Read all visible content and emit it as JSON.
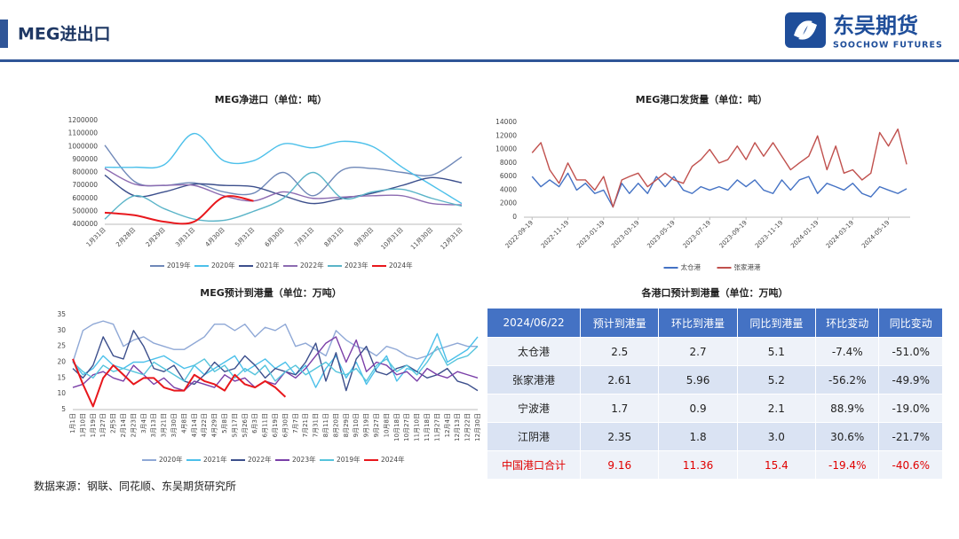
{
  "header": {
    "title": "MEG进出口",
    "logo_cn": "东吴期货",
    "logo_en": "SOOCHOW FUTURES"
  },
  "chart_data": [
    {
      "type": "line",
      "title": "MEG净进口（单位：吨）",
      "smooth": true,
      "grid": false,
      "categories": [
        "1月31日",
        "2月28日",
        "2月29日",
        "3月31日",
        "4月30日",
        "5月31日",
        "6月30日",
        "7月31日",
        "8月31日",
        "9月30日",
        "10月31日",
        "11月30日",
        "12月31日"
      ],
      "ylim": [
        400000,
        1200000
      ],
      "yticks": [
        400000,
        500000,
        600000,
        700000,
        800000,
        900000,
        1000000,
        1100000,
        1200000
      ],
      "series": [
        {
          "name": "2019年",
          "color": "#6f88b8",
          "values": [
            1010000,
            730000,
            700000,
            720000,
            650000,
            640000,
            800000,
            620000,
            820000,
            830000,
            800000,
            780000,
            920000
          ]
        },
        {
          "name": "2020年",
          "color": "#4cc0ea",
          "values": [
            840000,
            840000,
            860000,
            1100000,
            890000,
            890000,
            1020000,
            990000,
            1040000,
            1000000,
            840000,
            700000,
            560000
          ]
        },
        {
          "name": "2021年",
          "color": "#3c4f8c",
          "values": [
            780000,
            620000,
            650000,
            710000,
            700000,
            690000,
            620000,
            560000,
            600000,
            640000,
            700000,
            760000,
            720000
          ]
        },
        {
          "name": "2022年",
          "color": "#8c6bb1",
          "values": [
            830000,
            710000,
            700000,
            700000,
            620000,
            580000,
            650000,
            600000,
            610000,
            620000,
            620000,
            560000,
            550000
          ]
        },
        {
          "name": "2023年",
          "color": "#5ab4c8",
          "values": [
            440000,
            620000,
            520000,
            440000,
            430000,
            500000,
            600000,
            800000,
            600000,
            650000,
            670000,
            600000,
            540000
          ]
        },
        {
          "name": "2024年",
          "color": "#e8171c",
          "values": [
            490000,
            470000,
            420000,
            420000,
            610000,
            580000,
            null,
            null,
            null,
            null,
            null,
            null,
            null
          ]
        }
      ]
    },
    {
      "type": "line",
      "title": "MEG港口发货量（单位：吨）",
      "smooth": false,
      "grid": false,
      "x": [
        "2022-09-19",
        "2022-10-04",
        "2022-10-19",
        "2022-11-04",
        "2022-11-19",
        "2022-12-04",
        "2022-12-19",
        "2023-01-04",
        "2023-01-19",
        "2023-02-04",
        "2023-02-19",
        "2023-03-04",
        "2023-03-19",
        "2023-04-04",
        "2023-04-19",
        "2023-05-04",
        "2023-05-19",
        "2023-06-04",
        "2023-06-19",
        "2023-07-04",
        "2023-07-19",
        "2023-08-04",
        "2023-08-19",
        "2023-09-04",
        "2023-09-19",
        "2023-10-04",
        "2023-10-19",
        "2023-11-04",
        "2023-11-19",
        "2023-12-04",
        "2023-12-19",
        "2024-01-04",
        "2024-01-19",
        "2024-02-04",
        "2024-02-19",
        "2024-03-04",
        "2024-03-19",
        "2024-04-04",
        "2024-04-19",
        "2024-05-04",
        "2024-05-19",
        "2024-06-04",
        "2024-06-19"
      ],
      "xlim": [
        "2022-09-05",
        "2024-06-25"
      ],
      "xticks": [
        "2022-09-19",
        "2022-11-19",
        "2023-01-19",
        "2023-03-19",
        "2023-05-19",
        "2023-07-19",
        "2023-09-19",
        "2023-11-19",
        "2024-01-19",
        "2024-03-19",
        "2024-05-19"
      ],
      "ylim": [
        0,
        14000
      ],
      "yticks": [
        0,
        2000,
        4000,
        6000,
        8000,
        10000,
        12000,
        14000
      ],
      "series": [
        {
          "name": "太仓港",
          "color": "#4472c4",
          "values": [
            6000,
            4500,
            5500,
            4500,
            6500,
            4000,
            5000,
            3500,
            4000,
            1500,
            5000,
            3500,
            5000,
            3500,
            6000,
            4500,
            6000,
            4000,
            3500,
            4500,
            4000,
            4500,
            4000,
            5500,
            4500,
            5500,
            4000,
            3500,
            5500,
            4000,
            5500,
            6000,
            3500,
            5000,
            4500,
            4000,
            5000,
            3500,
            3000,
            4500,
            4000,
            3500,
            4200
          ]
        },
        {
          "name": "张家港港",
          "color": "#c0504d",
          "values": [
            9500,
            11000,
            7000,
            5000,
            8000,
            5500,
            5500,
            4000,
            6000,
            1500,
            5500,
            6000,
            6500,
            4500,
            5500,
            6500,
            5500,
            5000,
            7500,
            8500,
            10000,
            8000,
            8500,
            10500,
            8500,
            11000,
            9000,
            11000,
            9000,
            7000,
            8000,
            9000,
            12000,
            7000,
            10500,
            6500,
            7000,
            5500,
            6500,
            12500,
            10500,
            13000,
            7800
          ]
        }
      ]
    },
    {
      "type": "line",
      "title": "MEG预计到港量（单位：万吨）",
      "smooth": false,
      "grid": false,
      "categories": [
        "1月1日",
        "1月10日",
        "1月19日",
        "1月27日",
        "2月5日",
        "2月14日",
        "2月23日",
        "3月4日",
        "3月13日",
        "3月21日",
        "3月30日",
        "4月8日",
        "4月14日",
        "4月22日",
        "4月29日",
        "5月8日",
        "5月17日",
        "5月26日",
        "6月3日",
        "6月11日",
        "6月19日",
        "6月30日",
        "7月7日",
        "7月21日",
        "7月31日",
        "8月11日",
        "8月20日",
        "8月29日",
        "9月10日",
        "9月19日",
        "9月27日",
        "10月8日",
        "10月18日",
        "10月27日",
        "11月10日",
        "11月18日",
        "11月27日",
        "12月4日",
        "12月13日",
        "12月22日",
        "12月30日"
      ],
      "ylim": [
        5,
        35
      ],
      "yticks": [
        5,
        10,
        15,
        20,
        25,
        30,
        35
      ],
      "series": [
        {
          "name": "2020年",
          "color": "#8fa8d6",
          "values": [
            20,
            30,
            32,
            33,
            32,
            25,
            27,
            28,
            26,
            25,
            24,
            24,
            26,
            28,
            32,
            32,
            30,
            32,
            28,
            31,
            30,
            32,
            25,
            26,
            24,
            22,
            30,
            27,
            25,
            24,
            22,
            25,
            24,
            22,
            21,
            22,
            24,
            25,
            26,
            25,
            25
          ]
        },
        {
          "name": "2021年",
          "color": "#4cc0ea",
          "values": [
            20,
            16,
            18,
            22,
            19,
            18,
            20,
            20,
            21,
            22,
            20,
            18,
            19,
            16,
            18,
            20,
            22,
            17,
            19,
            21,
            18,
            20,
            16,
            19,
            12,
            18,
            22,
            15,
            20,
            13,
            18,
            22,
            14,
            18,
            17,
            22,
            29,
            20,
            22,
            24,
            28
          ]
        },
        {
          "name": "2022年",
          "color": "#3c4f8c",
          "values": [
            18,
            15,
            19,
            28,
            22,
            21,
            30,
            25,
            18,
            17,
            19,
            14,
            13,
            16,
            20,
            17,
            18,
            22,
            19,
            15,
            18,
            17,
            16,
            20,
            26,
            14,
            23,
            11,
            21,
            25,
            17,
            16,
            18,
            19,
            17,
            15,
            16,
            18,
            14,
            13,
            11
          ]
        },
        {
          "name": "2023年",
          "color": "#7a3fa8",
          "values": [
            12,
            13,
            16,
            17,
            15,
            14,
            19,
            16,
            13,
            15,
            12,
            11,
            14,
            13,
            12,
            16,
            14,
            15,
            12,
            14,
            13,
            17,
            15,
            18,
            22,
            26,
            28,
            20,
            27,
            17,
            20,
            19,
            16,
            17,
            14,
            18,
            16,
            15,
            17,
            16,
            15
          ]
        },
        {
          "name": "2019年",
          "color": "#55c4dc",
          "values": [
            20,
            17,
            15,
            19,
            17,
            18,
            17,
            16,
            20,
            18,
            16,
            14,
            19,
            21,
            17,
            19,
            15,
            18,
            16,
            19,
            14,
            17,
            19,
            16,
            18,
            20,
            17,
            16,
            18,
            14,
            19,
            21,
            17,
            19,
            16,
            20,
            25,
            19,
            21,
            22,
            25
          ]
        },
        {
          "name": "2024年",
          "color": "#e8171c",
          "values": [
            21,
            13,
            6,
            15,
            19,
            16,
            13,
            15,
            15,
            12,
            11,
            11,
            16,
            14,
            13,
            11,
            16,
            13,
            12,
            14,
            12,
            9,
            null,
            null,
            null,
            null,
            null,
            null,
            null,
            null,
            null,
            null,
            null,
            null,
            null,
            null,
            null,
            null,
            null,
            null,
            null
          ]
        }
      ]
    }
  ],
  "table": {
    "title": "各港口预计到港量（单位：万吨）",
    "header": [
      "2024/06/22",
      "预计到港量",
      "环比到港量",
      "同比到港量",
      "环比变动",
      "同比变动"
    ],
    "rows": [
      [
        "太仓港",
        "2.5",
        "2.7",
        "5.1",
        "-7.4%",
        "-51.0%"
      ],
      [
        "张家港港",
        "2.61",
        "5.96",
        "5.2",
        "-56.2%",
        "-49.9%"
      ],
      [
        "宁波港",
        "1.7",
        "0.9",
        "2.1",
        "88.9%",
        "-19.0%"
      ],
      [
        "江阴港",
        "2.35",
        "1.8",
        "3.0",
        "30.6%",
        "-21.7%"
      ],
      [
        "中国港口合计",
        "9.16",
        "11.36",
        "15.4",
        "-19.4%",
        "-40.6%"
      ]
    ]
  },
  "source": "数据来源：钢联、同花顺、东吴期货研究所"
}
